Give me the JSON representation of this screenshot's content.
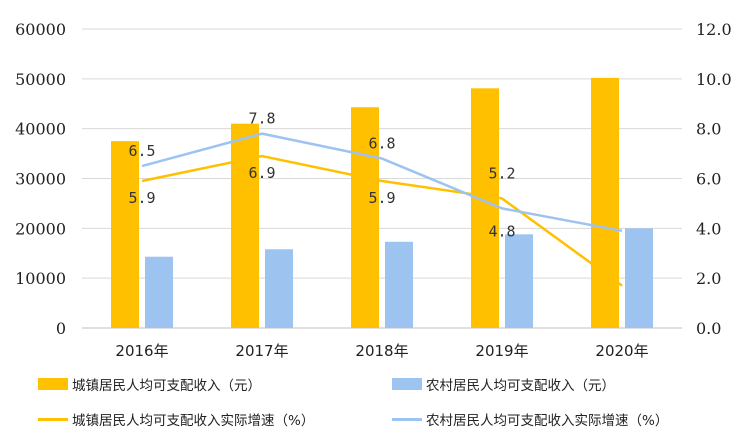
{
  "chart_data": {
    "type": "bar",
    "categories": [
      "2016年",
      "2017年",
      "2018年",
      "2019年",
      "2020年"
    ],
    "series": [
      {
        "name": "城镇居民人均可支配收入（元）",
        "kind": "bar",
        "axis": "left",
        "color": "#FFC000",
        "values": [
          37500,
          41000,
          44300,
          48100,
          50200
        ]
      },
      {
        "name": "农村居民人均可支配收入（元）",
        "kind": "bar",
        "axis": "left",
        "color": "#9DC3F0",
        "values": [
          14300,
          15800,
          17300,
          18800,
          20000
        ]
      },
      {
        "name": "城镇居民人均可支配收入实际增速（%）",
        "kind": "line",
        "axis": "right",
        "color": "#FFC000",
        "values": [
          5.9,
          6.9,
          5.9,
          5.2,
          1.7
        ],
        "labels": [
          "5.9",
          "6.9",
          "5.9",
          "5.2",
          ""
        ]
      },
      {
        "name": "农村居民人均可支配收入实际增速（%）",
        "kind": "line",
        "axis": "right",
        "color": "#9DC3F0",
        "values": [
          6.5,
          7.8,
          6.8,
          4.8,
          3.9
        ],
        "labels": [
          "6.5",
          "7.8",
          "6.8",
          "4.8",
          ""
        ]
      }
    ],
    "y_left": {
      "range": [
        0,
        60000
      ],
      "ticks": [
        "0",
        "10000",
        "20000",
        "30000",
        "40000",
        "50000",
        "60000"
      ]
    },
    "y_right": {
      "range": [
        0,
        12
      ],
      "ticks": [
        "0.0",
        "2.0",
        "4.0",
        "6.0",
        "8.0",
        "10.0",
        "12.0"
      ]
    },
    "grid": true,
    "legend_placement": "bottom"
  }
}
